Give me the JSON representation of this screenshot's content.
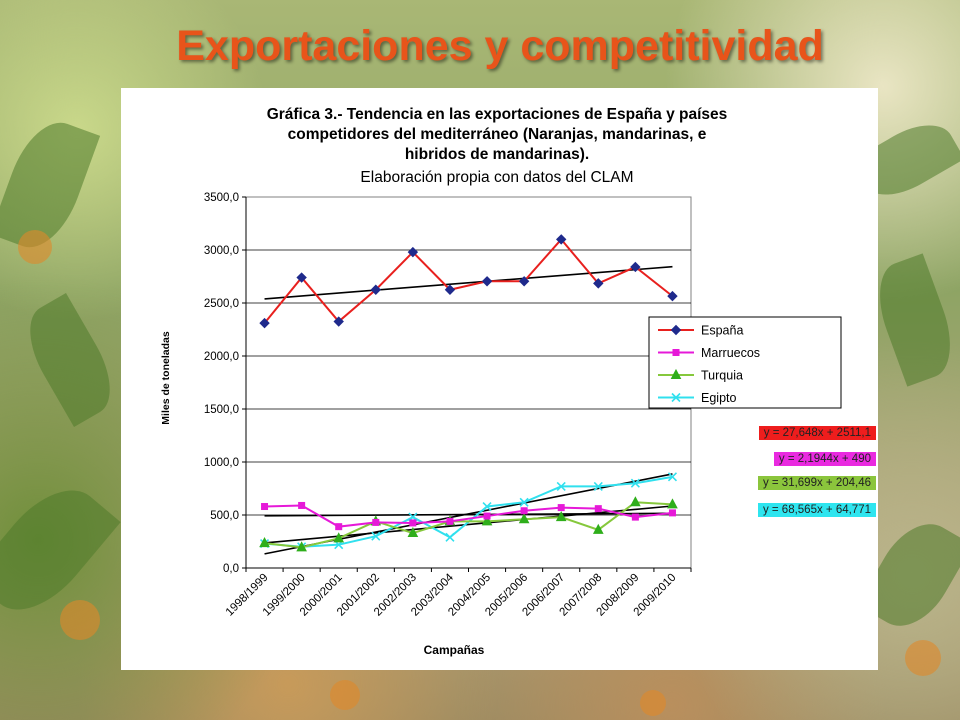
{
  "slide": {
    "title": "Exportaciones y competitividad"
  },
  "chart_data": {
    "type": "line",
    "title": "Gráfica 3.- Tendencia en las exportaciones de España y países competidores del mediterráneo (Naranjas, mandarinas, e hibridos de mandarinas).",
    "title_lines": [
      "Gráfica 3.- Tendencia en las exportaciones de España y países",
      "competidores del mediterráneo (Naranjas, mandarinas, e",
      "hibridos de mandarinas)."
    ],
    "subtitle": "Elaboración propia con datos del CLAM",
    "xlabel": "Campañas",
    "ylabel": "Miles de toneladas",
    "ylim": [
      0,
      3500
    ],
    "yticks": [
      "0,0",
      "500,0",
      "1000,0",
      "1500,0",
      "2000,0",
      "2500,0",
      "3000,0",
      "3500,0"
    ],
    "ytick_values": [
      0,
      500,
      1000,
      1500,
      2000,
      2500,
      3000,
      3500
    ],
    "grid": true,
    "legend_position": "right",
    "categories": [
      "1998/1999",
      "1999/2000",
      "2000/2001",
      "2001/2002",
      "2002/2003",
      "2003/2004",
      "2004/2005",
      "2005/2006",
      "2006/2007",
      "2007/2008",
      "2008/2009",
      "2009/2010"
    ],
    "series": [
      {
        "name": "España",
        "color": "#e8201e",
        "marker": "diamond",
        "marker_color": "#1f2a8c",
        "values": [
          2310,
          2740,
          2325,
          2625,
          2980,
          2625,
          2705,
          2705,
          3100,
          2685,
          2840,
          2565
        ],
        "trend": {
          "slope": 27.648,
          "intercept": 2511.1,
          "label": "y = 27,648x + 2511,1",
          "label_bg": "#ee1d1d"
        }
      },
      {
        "name": "Marruecos",
        "color": "#e619d8",
        "marker": "square",
        "marker_color": "#e619d8",
        "values": [
          580,
          590,
          390,
          430,
          425,
          440,
          490,
          540,
          570,
          560,
          480,
          520
        ],
        "trend": {
          "slope": 2.1944,
          "intercept": 490,
          "label": "y = 2,1944x + 490",
          "label_bg": "#e92ae0"
        }
      },
      {
        "name": "Turquia",
        "color": "#86c83c",
        "marker": "triangle",
        "marker_color": "#2fae1b",
        "values": [
          235,
          195,
          280,
          440,
          330,
          440,
          440,
          460,
          480,
          360,
          620,
          600
        ],
        "trend": {
          "slope": 31.699,
          "intercept": 204.46,
          "label": "y = 31,699x + 204,46",
          "label_bg": "#8bc53c"
        }
      },
      {
        "name": "Egipto",
        "color": "#30e0ee",
        "marker": "x",
        "marker_color": "#30e0ee",
        "values": [
          230,
          200,
          220,
          300,
          480,
          290,
          580,
          620,
          770,
          770,
          800,
          860
        ],
        "trend": {
          "slope": 68.565,
          "intercept": 64.771,
          "label": "y = 68,565x + 64,771",
          "label_bg": "#2ee5ef"
        }
      }
    ]
  }
}
